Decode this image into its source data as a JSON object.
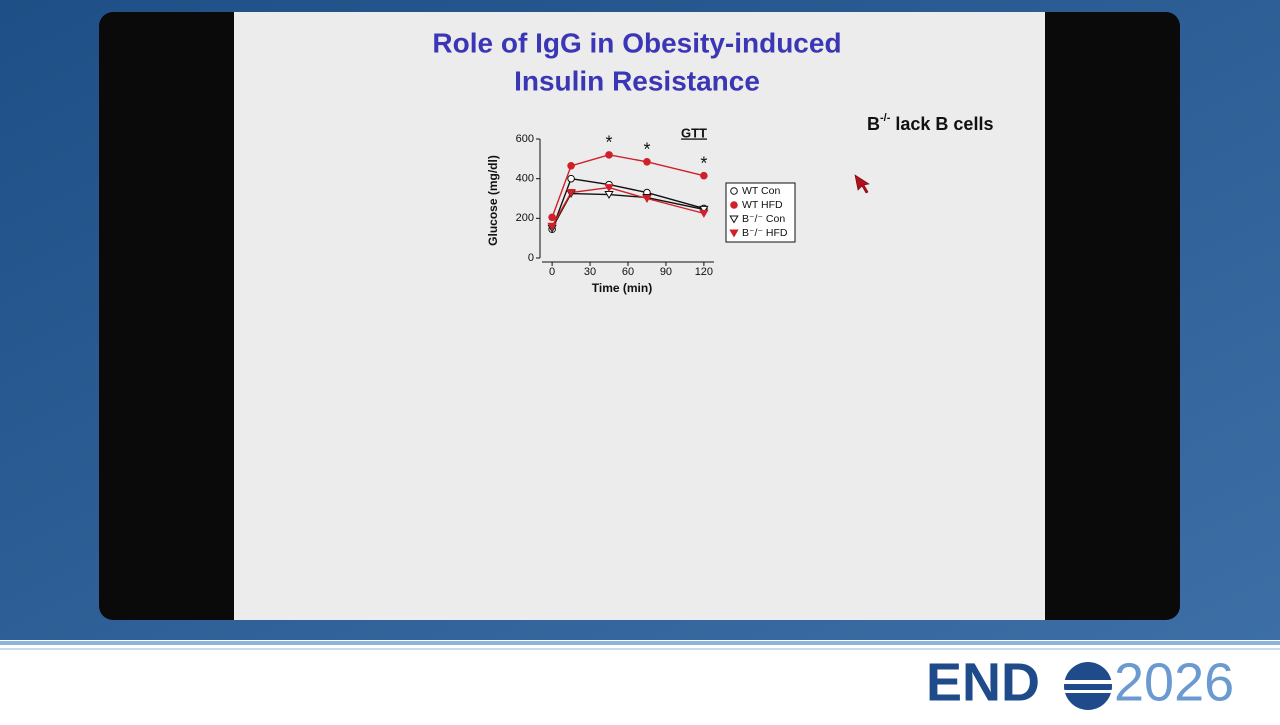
{
  "slide": {
    "title_lines": [
      "Role of IgG in Obesity-induced",
      "Insulin Resistance"
    ],
    "note": {
      "base": "B",
      "sup": "-/-",
      "rest": "lack B cells"
    }
  },
  "logo": {
    "left": "END",
    "right": "2026"
  },
  "chart_data": {
    "type": "line",
    "title": "GTT",
    "x_label": "Time (min)",
    "y_label": "Glucose (mg/dl)",
    "x": [
      0,
      15,
      45,
      75,
      120
    ],
    "series": [
      {
        "name": "WT Con",
        "color": "#111111",
        "marker": "open-circle",
        "values": [
          145,
          400,
          370,
          330,
          250
        ]
      },
      {
        "name": "WT HFD",
        "color": "#d0202a",
        "marker": "filled-circle",
        "values": [
          205,
          465,
          520,
          485,
          415
        ]
      },
      {
        "name": "B⁻/⁻ Con",
        "color": "#111111",
        "marker": "open-triangle",
        "values": [
          150,
          325,
          320,
          305,
          245
        ]
      },
      {
        "name": "B⁻/⁻ HFD",
        "color": "#d0202a",
        "marker": "filled-triangle",
        "values": [
          160,
          330,
          355,
          300,
          225
        ]
      }
    ],
    "annotations": [
      {
        "x": 45,
        "text": "*"
      },
      {
        "x": 75,
        "text": "*"
      },
      {
        "x": 120,
        "text": "*"
      }
    ],
    "xlim": [
      -8,
      128
    ],
    "xticks": [
      0,
      30,
      60,
      90,
      120
    ],
    "ylim": [
      0,
      600
    ],
    "yticks": [
      0,
      200,
      400,
      600
    ]
  }
}
